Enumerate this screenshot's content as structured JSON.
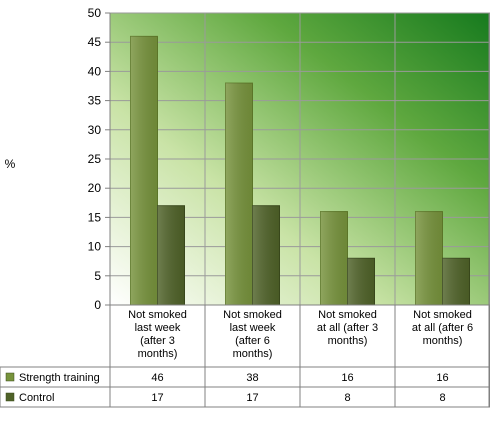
{
  "chart_data": {
    "type": "bar",
    "title": "",
    "xlabel": "",
    "ylabel": "%",
    "ylim": [
      0,
      50
    ],
    "yticks": [
      0,
      5,
      10,
      15,
      20,
      25,
      30,
      35,
      40,
      45,
      50
    ],
    "grid": true,
    "legend": "left of data table",
    "categories": [
      [
        "Not smoked",
        "last week",
        "(after 3",
        "months)"
      ],
      [
        "Not smoked",
        "last week",
        "(after 6",
        "months)"
      ],
      [
        "Not smoked",
        "at all (after 3",
        "months)"
      ],
      [
        "Not smoked",
        "at all (after 6",
        "months)"
      ]
    ],
    "series": [
      {
        "name": "Strength training",
        "values": [
          46,
          38,
          16,
          16
        ],
        "color": "#77933C"
      },
      {
        "name": "Control",
        "values": [
          17,
          17,
          8,
          8
        ],
        "color": "#4F6228"
      }
    ],
    "data_table": true
  }
}
